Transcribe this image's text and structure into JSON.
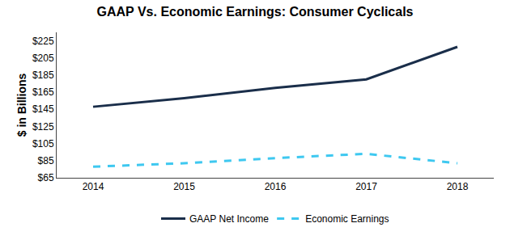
{
  "chart_data": {
    "type": "line",
    "title": "GAAP Vs. Economic Earnings: Consumer Cyclicals",
    "ylabel": "$ in Billions",
    "x": [
      2014,
      2015,
      2016,
      2017,
      2018
    ],
    "series": [
      {
        "name": "GAAP Net Income",
        "color": "#1a2e4a",
        "line_style": "solid",
        "values": [
          148,
          158,
          170,
          180,
          218
        ]
      },
      {
        "name": "Economic Earnings",
        "color": "#3ec8f0",
        "line_style": "dashed",
        "values": [
          78,
          82,
          88,
          93,
          82
        ]
      }
    ],
    "xlim": [
      2013.6,
      2018.4
    ],
    "xticks": [
      2014,
      2015,
      2016,
      2017,
      2018
    ],
    "ylim": [
      65,
      235
    ],
    "yticks": [
      {
        "value": 65,
        "label": "$65"
      },
      {
        "value": 85,
        "label": "$85"
      },
      {
        "value": 105,
        "label": "$105"
      },
      {
        "value": 125,
        "label": "$125"
      },
      {
        "value": 145,
        "label": "$145"
      },
      {
        "value": 165,
        "label": "$165"
      },
      {
        "value": 185,
        "label": "$185"
      },
      {
        "value": 205,
        "label": "$205"
      },
      {
        "value": 225,
        "label": "$225"
      }
    ],
    "grid": false,
    "legend": "bottom"
  }
}
